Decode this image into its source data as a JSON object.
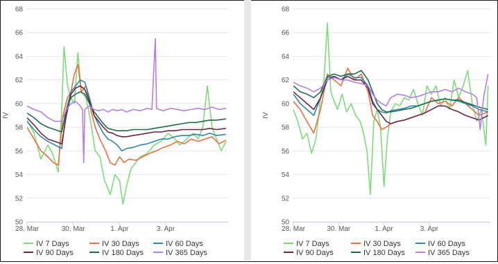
{
  "chart_data": [
    {
      "type": "line",
      "ylabel": "IV",
      "ylim": [
        50,
        68
      ],
      "yticks": [
        50,
        52,
        54,
        56,
        58,
        60,
        62,
        64,
        66,
        68
      ],
      "xlim": [
        0,
        8.7
      ],
      "xticks": [
        {
          "x": 0,
          "label": "28. Mar"
        },
        {
          "x": 2,
          "label": "30. Mar"
        },
        {
          "x": 4,
          "label": "1. Apr"
        },
        {
          "x": 6,
          "label": "3. Apr"
        }
      ],
      "grid": "horizontal",
      "legend": "bottom",
      "series": [
        {
          "name": "IV 7 Days",
          "color": "#7ddc7a",
          "x": [
            0,
            0.3,
            0.6,
            0.9,
            1.1,
            1.35,
            1.5,
            1.6,
            1.75,
            1.9,
            2.05,
            2.2,
            2.35,
            2.55,
            2.75,
            2.95,
            3.15,
            3.35,
            3.6,
            3.8,
            4.0,
            4.15,
            4.3,
            4.5,
            4.7,
            4.9,
            5.2,
            5.5,
            5.8,
            6.1,
            6.4,
            6.6,
            6.8,
            7.0,
            7.2,
            7.4,
            7.6,
            7.8,
            8.0,
            8.2,
            8.4,
            8.6
          ],
          "y": [
            58.6,
            57.5,
            55.3,
            56.5,
            55.8,
            54.2,
            59.5,
            64.8,
            61.5,
            60.5,
            60.0,
            64.3,
            61.0,
            60.5,
            58.5,
            56.0,
            55.5,
            53.5,
            52.3,
            54.0,
            53.5,
            51.5,
            53.0,
            54.5,
            55.0,
            55.5,
            55.8,
            56.5,
            56.8,
            57.5,
            57.0,
            56.5,
            56.8,
            57.2,
            57.5,
            57.0,
            58.0,
            61.5,
            58.0,
            57.0,
            56.0,
            56.8
          ]
        },
        {
          "name": "IV 30 Days",
          "color": "#f26c3d",
          "x": [
            0,
            0.3,
            0.6,
            0.9,
            1.15,
            1.35,
            1.55,
            1.75,
            1.9,
            2.05,
            2.2,
            2.35,
            2.55,
            2.75,
            2.95,
            3.15,
            3.4,
            3.6,
            3.8,
            4.0,
            4.2,
            4.4,
            4.7,
            5.0,
            5.3,
            5.6,
            5.9,
            6.2,
            6.5,
            6.8,
            7.1,
            7.4,
            7.7,
            8.0,
            8.3,
            8.6
          ],
          "y": [
            58.0,
            57.0,
            56.0,
            55.5,
            55.0,
            54.8,
            59.0,
            60.5,
            61.0,
            62.5,
            63.3,
            61.0,
            61.5,
            59.5,
            58.0,
            57.0,
            56.0,
            55.0,
            54.8,
            55.5,
            55.0,
            55.3,
            55.2,
            55.5,
            55.8,
            56.0,
            56.3,
            56.5,
            56.8,
            56.6,
            57.0,
            56.8,
            57.0,
            57.2,
            56.6,
            56.9
          ]
        },
        {
          "name": "IV 60 Days",
          "color": "#2e86ab",
          "x": [
            0,
            0.3,
            0.6,
            0.9,
            1.2,
            1.5,
            1.7,
            1.9,
            2.1,
            2.3,
            2.5,
            2.7,
            2.9,
            3.1,
            3.3,
            3.5,
            3.7,
            3.9,
            4.1,
            4.3,
            4.6,
            4.9,
            5.2,
            5.5,
            5.8,
            6.1,
            6.4,
            6.7,
            7.0,
            7.3,
            7.6,
            7.9,
            8.2,
            8.6
          ],
          "y": [
            58.5,
            57.8,
            57.2,
            56.8,
            56.5,
            56.2,
            59.5,
            61.0,
            61.5,
            62.0,
            61.8,
            60.5,
            59.0,
            58.2,
            57.5,
            57.0,
            56.8,
            56.5,
            56.0,
            56.2,
            56.3,
            56.5,
            56.6,
            56.8,
            57.0,
            57.0,
            57.2,
            57.3,
            57.3,
            57.4,
            57.3,
            57.5,
            57.3,
            57.4
          ]
        },
        {
          "name": "IV 90 Days",
          "color": "#6b2444",
          "x": [
            0,
            0.3,
            0.6,
            0.9,
            1.2,
            1.5,
            1.7,
            1.9,
            2.1,
            2.3,
            2.5,
            2.7,
            2.9,
            3.1,
            3.3,
            3.5,
            3.7,
            3.9,
            4.1,
            4.3,
            4.6,
            4.9,
            5.2,
            5.5,
            5.8,
            6.1,
            6.4,
            6.7,
            7.0,
            7.3,
            7.6,
            7.9,
            8.2,
            8.6
          ],
          "y": [
            58.8,
            58.2,
            57.5,
            57.0,
            56.8,
            56.6,
            59.0,
            60.8,
            61.3,
            61.5,
            61.2,
            60.2,
            59.0,
            58.5,
            58.0,
            57.6,
            57.5,
            57.3,
            57.2,
            57.2,
            57.3,
            57.4,
            57.5,
            57.6,
            57.6,
            57.7,
            57.7,
            57.8,
            57.8,
            57.8,
            57.8,
            57.9,
            57.8,
            57.9
          ]
        },
        {
          "name": "IV 180 Days",
          "color": "#1f6b45",
          "x": [
            0,
            0.3,
            0.6,
            0.9,
            1.2,
            1.5,
            1.7,
            1.9,
            2.1,
            2.3,
            2.5,
            2.7,
            2.9,
            3.1,
            3.3,
            3.5,
            3.7,
            3.9,
            4.1,
            4.3,
            4.6,
            4.9,
            5.2,
            5.5,
            5.8,
            6.1,
            6.4,
            6.7,
            7.0,
            7.3,
            7.6,
            7.9,
            8.2,
            8.6
          ],
          "y": [
            59.2,
            58.8,
            58.3,
            58.0,
            57.8,
            57.6,
            59.5,
            60.5,
            60.8,
            61.0,
            60.8,
            60.0,
            59.3,
            58.8,
            58.3,
            57.9,
            57.8,
            57.7,
            57.7,
            57.7,
            57.8,
            57.8,
            57.8,
            57.9,
            58.0,
            58.1,
            58.2,
            58.3,
            58.4,
            58.4,
            58.5,
            58.6,
            58.6,
            58.7
          ]
        },
        {
          "name": "IV 365 Days",
          "color": "#b57ee3",
          "x": [
            0,
            0.3,
            0.6,
            0.9,
            1.2,
            1.5,
            1.7,
            1.9,
            2.1,
            2.3,
            2.4,
            2.45,
            2.5,
            2.7,
            2.9,
            3.1,
            3.3,
            3.5,
            3.7,
            3.9,
            4.1,
            4.3,
            4.6,
            4.9,
            5.2,
            5.4,
            5.55,
            5.6,
            5.7,
            5.9,
            6.2,
            6.5,
            6.8,
            7.1,
            7.4,
            7.7,
            8.0,
            8.3,
            8.6
          ],
          "y": [
            59.8,
            59.5,
            59.3,
            58.8,
            58.5,
            58.5,
            59.5,
            60.0,
            60.2,
            59.8,
            59.5,
            55.0,
            59.5,
            59.8,
            59.5,
            59.4,
            59.5,
            59.3,
            59.5,
            59.4,
            59.5,
            59.3,
            59.5,
            59.4,
            59.6,
            59.5,
            65.5,
            59.6,
            59.5,
            59.4,
            59.6,
            59.5,
            59.4,
            59.5,
            59.6,
            59.5,
            59.7,
            59.5,
            59.6
          ]
        }
      ]
    },
    {
      "type": "line",
      "ylabel": "IV",
      "ylim": [
        50,
        68
      ],
      "yticks": [
        50,
        52,
        54,
        56,
        58,
        60,
        62,
        64,
        66,
        68
      ],
      "xlim": [
        0,
        8.7
      ],
      "xticks": [
        {
          "x": 0,
          "label": "28. Mar"
        },
        {
          "x": 2,
          "label": "30. Mar"
        },
        {
          "x": 4,
          "label": "1. Apr"
        },
        {
          "x": 6,
          "label": "3. Apr"
        }
      ],
      "grid": "horizontal",
      "legend": "bottom",
      "series": [
        {
          "name": "IV 7 Days",
          "color": "#7ddc7a",
          "x": [
            0,
            0.2,
            0.4,
            0.6,
            0.8,
            1.0,
            1.2,
            1.35,
            1.5,
            1.65,
            1.8,
            1.95,
            2.15,
            2.35,
            2.55,
            2.75,
            2.95,
            3.1,
            3.25,
            3.4,
            3.55,
            3.7,
            3.85,
            4.0,
            4.15,
            4.3,
            4.5,
            4.7,
            4.9,
            5.1,
            5.3,
            5.5,
            5.7,
            5.9,
            6.1,
            6.3,
            6.5,
            6.7,
            6.9,
            7.1,
            7.3,
            7.5,
            7.7,
            7.9,
            8.1,
            8.3,
            8.5,
            8.6
          ],
          "y": [
            59.5,
            58.5,
            57.0,
            57.5,
            55.8,
            57.0,
            60.5,
            62.0,
            66.8,
            61.0,
            60.2,
            59.5,
            60.8,
            59.3,
            60.0,
            59.0,
            58.5,
            57.5,
            56.0,
            52.3,
            58.5,
            59.5,
            58.0,
            53.0,
            57.0,
            59.3,
            60.0,
            59.8,
            60.5,
            60.3,
            61.2,
            60.0,
            59.0,
            61.5,
            60.8,
            61.5,
            59.8,
            60.5,
            59.5,
            62.0,
            60.5,
            61.5,
            62.8,
            60.0,
            58.5,
            59.5,
            56.5,
            61.5
          ]
        },
        {
          "name": "IV 30 Days",
          "color": "#f26c3d",
          "x": [
            0,
            0.3,
            0.6,
            0.9,
            1.2,
            1.5,
            1.8,
            2.1,
            2.4,
            2.7,
            3.0,
            3.3,
            3.5,
            3.7,
            3.9,
            4.1,
            4.3,
            4.6,
            4.9,
            5.2,
            5.5,
            5.8,
            6.1,
            6.4,
            6.7,
            7.0,
            7.3,
            7.6,
            7.9,
            8.2,
            8.6
          ],
          "y": [
            60.2,
            59.5,
            58.5,
            57.5,
            59.5,
            62.5,
            62.0,
            61.5,
            63.0,
            62.0,
            62.5,
            61.0,
            59.0,
            58.5,
            57.8,
            58.0,
            58.3,
            58.5,
            58.6,
            58.8,
            59.0,
            59.2,
            60.5,
            60.0,
            60.2,
            59.8,
            60.5,
            60.0,
            59.5,
            59.0,
            59.3
          ]
        },
        {
          "name": "IV 60 Days",
          "color": "#2e86ab",
          "x": [
            0,
            0.3,
            0.6,
            0.9,
            1.2,
            1.5,
            1.8,
            2.1,
            2.4,
            2.7,
            3.0,
            3.3,
            3.5,
            3.7,
            3.9,
            4.1,
            4.3,
            4.6,
            4.9,
            5.2,
            5.5,
            5.8,
            6.1,
            6.4,
            6.7,
            7.0,
            7.3,
            7.6,
            7.9,
            8.2,
            8.6
          ],
          "y": [
            60.8,
            60.0,
            59.5,
            59.0,
            60.5,
            62.2,
            62.3,
            62.0,
            62.5,
            62.2,
            62.2,
            61.5,
            60.2,
            59.5,
            59.3,
            59.2,
            59.4,
            59.5,
            59.6,
            59.8,
            59.8,
            60.0,
            60.2,
            60.3,
            60.4,
            60.3,
            60.2,
            60.0,
            59.8,
            59.5,
            59.3
          ]
        },
        {
          "name": "IV 90 Days",
          "color": "#6b2444",
          "x": [
            0,
            0.3,
            0.6,
            0.9,
            1.2,
            1.5,
            1.8,
            2.1,
            2.4,
            2.7,
            3.0,
            3.3,
            3.5,
            3.7,
            3.9,
            4.1,
            4.3,
            4.6,
            4.9,
            5.2,
            5.5,
            5.8,
            6.1,
            6.4,
            6.7,
            7.0,
            7.3,
            7.6,
            7.9,
            8.2,
            8.6
          ],
          "y": [
            61.0,
            60.5,
            60.0,
            59.5,
            60.5,
            62.0,
            62.3,
            62.0,
            62.3,
            62.0,
            62.0,
            61.3,
            60.0,
            59.5,
            59.0,
            58.5,
            58.3,
            58.5,
            58.6,
            58.8,
            59.0,
            59.2,
            59.5,
            59.8,
            59.8,
            59.5,
            59.3,
            59.0,
            58.8,
            58.6,
            59.0
          ]
        },
        {
          "name": "IV 180 Days",
          "color": "#1f6b45",
          "x": [
            0,
            0.3,
            0.6,
            0.9,
            1.2,
            1.5,
            1.8,
            2.1,
            2.4,
            2.7,
            3.0,
            3.3,
            3.5,
            3.7,
            3.9,
            4.1,
            4.3,
            4.6,
            4.9,
            5.2,
            5.5,
            5.8,
            6.1,
            6.4,
            6.7,
            7.0,
            7.3,
            7.6,
            7.9,
            8.2,
            8.6
          ],
          "y": [
            61.5,
            61.0,
            60.8,
            60.5,
            61.0,
            62.3,
            62.5,
            62.3,
            62.5,
            62.5,
            62.8,
            62.0,
            61.0,
            60.0,
            59.5,
            59.3,
            59.3,
            59.4,
            59.5,
            59.6,
            59.8,
            60.0,
            60.2,
            60.3,
            60.4,
            60.3,
            60.3,
            60.1,
            59.9,
            59.7,
            59.5
          ]
        },
        {
          "name": "IV 365 Days",
          "color": "#b57ee3",
          "x": [
            0,
            0.3,
            0.6,
            0.9,
            1.2,
            1.5,
            1.8,
            2.1,
            2.4,
            2.7,
            3.0,
            3.3,
            3.5,
            3.7,
            3.9,
            4.1,
            4.3,
            4.6,
            4.9,
            5.2,
            5.5,
            5.8,
            6.1,
            6.4,
            6.7,
            7.0,
            7.3,
            7.6,
            7.9,
            8.1,
            8.25,
            8.4,
            8.6
          ],
          "y": [
            61.8,
            61.5,
            61.3,
            61.0,
            61.3,
            62.0,
            62.2,
            62.0,
            62.0,
            61.8,
            61.7,
            61.5,
            60.8,
            60.3,
            60.0,
            59.8,
            60.5,
            60.8,
            60.7,
            60.5,
            60.6,
            60.8,
            61.0,
            61.0,
            61.2,
            61.0,
            61.3,
            61.0,
            60.8,
            60.5,
            57.8,
            60.5,
            62.5
          ]
        }
      ]
    }
  ]
}
